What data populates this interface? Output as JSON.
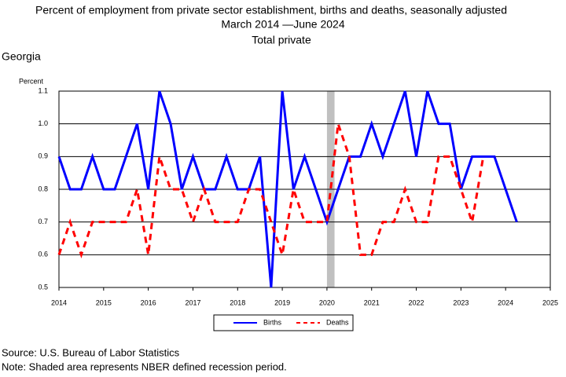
{
  "chart_data": {
    "type": "line",
    "title": "Percent of employment from private sector establishment, births and deaths, seasonally adjusted",
    "subtitle": "March 2014 —June 2024",
    "subtitle2": "Total private",
    "region": "Georgia",
    "ylabel": "Percent",
    "x": [
      2014,
      2014.25,
      2014.5,
      2014.75,
      2015,
      2015.25,
      2015.5,
      2015.75,
      2016,
      2016.25,
      2016.5,
      2016.75,
      2017,
      2017.25,
      2017.5,
      2017.75,
      2018,
      2018.25,
      2018.5,
      2018.75,
      2019,
      2019.25,
      2019.5,
      2019.75,
      2020,
      2020.25,
      2020.5,
      2020.75,
      2021,
      2021.25,
      2021.5,
      2021.75,
      2022,
      2022.25,
      2022.5,
      2022.75,
      2023,
      2023.25,
      2023.5,
      2023.75,
      2024,
      2024.25
    ],
    "series": [
      {
        "name": "Births",
        "color": "#0000ff",
        "dashed": false,
        "values": [
          0.9,
          0.8,
          0.8,
          0.9,
          0.8,
          0.8,
          0.9,
          1.0,
          0.8,
          1.1,
          1.0,
          0.8,
          0.9,
          0.8,
          0.8,
          0.9,
          0.8,
          0.8,
          0.9,
          0.5,
          1.1,
          0.8,
          0.9,
          0.8,
          0.7,
          0.8,
          0.9,
          0.9,
          1.0,
          0.9,
          1.0,
          1.1,
          0.9,
          1.1,
          1.0,
          1.0,
          0.8,
          0.9,
          0.9,
          0.9,
          0.8,
          0.7
        ]
      },
      {
        "name": "Deaths",
        "color": "#ff0000",
        "dashed": true,
        "values": [
          0.6,
          0.7,
          0.6,
          0.7,
          0.7,
          0.7,
          0.7,
          0.8,
          0.6,
          0.9,
          0.8,
          0.8,
          0.7,
          0.8,
          0.7,
          0.7,
          0.7,
          0.8,
          0.8,
          0.7,
          0.6,
          0.8,
          0.7,
          0.7,
          0.7,
          1.0,
          0.9,
          0.6,
          0.6,
          0.7,
          0.7,
          0.8,
          0.7,
          0.7,
          0.9,
          0.9,
          0.8,
          0.7,
          0.9,
          null,
          null,
          null
        ]
      }
    ],
    "recession": [
      2020,
      2020.17
    ],
    "xlim": [
      2014,
      2025
    ],
    "xticks": [
      2014,
      2015,
      2016,
      2017,
      2018,
      2019,
      2020,
      2021,
      2022,
      2023,
      2024,
      2025
    ],
    "ylim": [
      0.5,
      1.1
    ],
    "yticks": [
      0.5,
      0.6,
      0.7,
      0.8,
      0.9,
      {
        "value": 1,
        "label": "1.0"
      },
      1.1
    ],
    "grid": true,
    "legend": "bottom",
    "source": "Source: U.S. Bureau of Labor Statistics",
    "note": "Note: Shaded area represents NBER defined recession period."
  }
}
